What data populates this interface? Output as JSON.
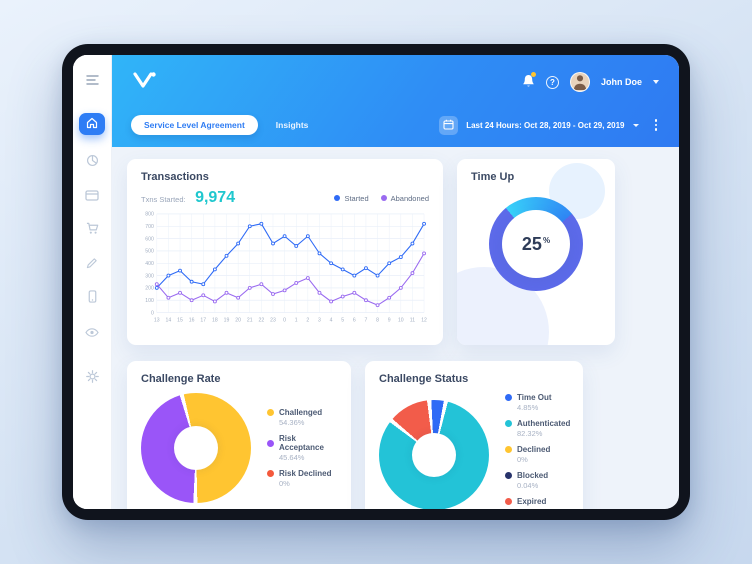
{
  "header": {
    "user_name": "John Doe",
    "help_label": "?"
  },
  "nav": {
    "tabs": [
      {
        "label": "Service Level Agreement",
        "active": true
      },
      {
        "label": "Insights",
        "active": false
      }
    ],
    "date_range": "Last 24 Hours: Oct 28, 2019 - Oct 29, 2019"
  },
  "transactions": {
    "title": "Transactions",
    "subtitle": "Txns Started:",
    "value": "9,974"
  },
  "time_up": {
    "title": "Time Up",
    "value": "25",
    "unit": "%",
    "percent": 25,
    "arc_color": "#38d2f9",
    "arc_color2": "#2f86f4",
    "track_color": "#5c6ae9"
  },
  "chart_data": [
    {
      "type": "line",
      "title": "Transactions",
      "x_labels": [
        "13",
        "14",
        "15",
        "16",
        "17",
        "18",
        "19",
        "20",
        "21",
        "22",
        "23",
        "0",
        "1",
        "2",
        "3",
        "4",
        "5",
        "6",
        "7",
        "8",
        "9",
        "10",
        "11",
        "12"
      ],
      "ylim": [
        0,
        800
      ],
      "ytick_step": 100,
      "grid": true,
      "legend_position": "top-right",
      "series": [
        {
          "name": "Started",
          "color": "#2f6bf6",
          "values": [
            200,
            300,
            340,
            250,
            230,
            350,
            460,
            560,
            700,
            720,
            560,
            620,
            540,
            620,
            480,
            400,
            350,
            300,
            360,
            300,
            400,
            450,
            560,
            720
          ]
        },
        {
          "name": "Abandoned",
          "color": "#9a6bf0",
          "values": [
            230,
            120,
            160,
            100,
            140,
            90,
            160,
            120,
            200,
            230,
            150,
            180,
            240,
            280,
            160,
            90,
            130,
            160,
            100,
            60,
            120,
            200,
            320,
            480
          ]
        }
      ]
    },
    {
      "type": "pie",
      "title": "Challenge Rate",
      "slices": [
        {
          "label": "Challenged",
          "value": 54.36,
          "pct_label": "54.36%",
          "color": "#ffc531"
        },
        {
          "label": "Risk Acceptance",
          "value": 45.64,
          "pct_label": "45.64%",
          "color": "#9a55f8"
        },
        {
          "label": "Risk Declined",
          "value": 0,
          "pct_label": "0%",
          "color": "#f4593c"
        }
      ]
    },
    {
      "type": "pie",
      "title": "Challenge Status",
      "slices": [
        {
          "label": "Time Out",
          "value": 4.85,
          "pct_label": "4.85%",
          "color": "#2f6bf6"
        },
        {
          "label": "Authenticated",
          "value": 82.32,
          "pct_label": "82.32%",
          "color": "#23c3d7"
        },
        {
          "label": "Declined",
          "value": 0,
          "pct_label": "0%",
          "color": "#ffc531"
        },
        {
          "label": "Blocked",
          "value": 0.04,
          "pct_label": "0.04%",
          "color": "#27336b"
        },
        {
          "label": "Expired",
          "value": 12.79,
          "pct_label": "12.79%",
          "color": "#f25c4a"
        }
      ]
    }
  ]
}
